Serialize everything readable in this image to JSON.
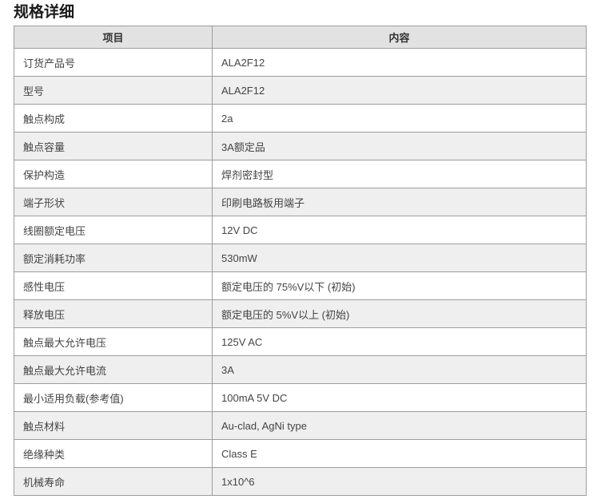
{
  "page": {
    "title": "规格详细"
  },
  "table": {
    "headers": {
      "item": "项目",
      "content": "内容"
    },
    "rows": [
      {
        "item": "订货产品号",
        "content": "ALA2F12"
      },
      {
        "item": "型号",
        "content": "ALA2F12"
      },
      {
        "item": "触点构成",
        "content": "2a"
      },
      {
        "item": "触点容量",
        "content": "3A额定品"
      },
      {
        "item": "保护构造",
        "content": "焊剂密封型"
      },
      {
        "item": "端子形状",
        "content": "印刷电路板用端子"
      },
      {
        "item": "线圈额定电压",
        "content": "12V DC"
      },
      {
        "item": "额定消耗功率",
        "content": "530mW"
      },
      {
        "item": "感性电压",
        "content": "额定电压的 75%V以下 (初始)"
      },
      {
        "item": "释放电压",
        "content": "额定电压的 5%V以上 (初始)"
      },
      {
        "item": "触点最大允许电压",
        "content": "125V AC"
      },
      {
        "item": "触点最大允许电流",
        "content": "3A"
      },
      {
        "item": "最小适用负载(参考值)",
        "content": "100mA 5V DC"
      },
      {
        "item": "触点材料",
        "content": "Au-clad, AgNi type"
      },
      {
        "item": "绝缘种类",
        "content": "Class E"
      },
      {
        "item": "机械寿命",
        "content": "1x10^6"
      }
    ]
  },
  "colors": {
    "header_bg": "#e2e2e2",
    "row_alt_bg": "#efefef",
    "border": "#9d9d9d",
    "cell_text": "#444444",
    "title_text": "#1a1a1a"
  }
}
